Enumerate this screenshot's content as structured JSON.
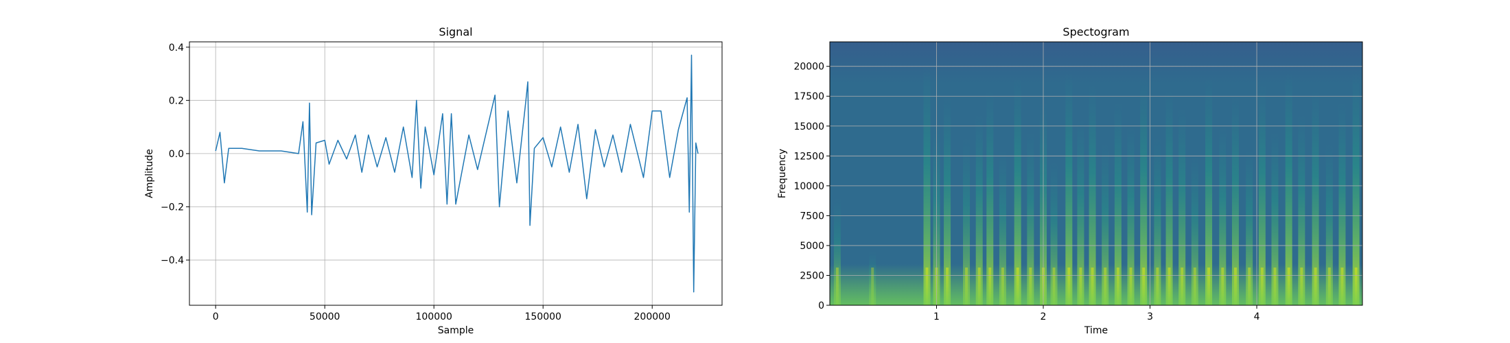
{
  "charts": [
    {
      "type": "line",
      "title": "Signal",
      "xlabel": "Sample",
      "ylabel": "Amplitude",
      "xlim": [
        -12000,
        232000
      ],
      "ylim": [
        -0.57,
        0.42
      ],
      "xticks": [
        0,
        50000,
        100000,
        150000,
        200000
      ],
      "xtick_labels": [
        "0",
        "50000",
        "100000",
        "150000",
        "200000"
      ],
      "yticks": [
        -0.4,
        -0.2,
        0.0,
        0.2,
        0.4
      ],
      "ytick_labels": [
        "−0.4",
        "−0.2",
        "0.0",
        "0.2",
        "0.4"
      ],
      "grid": true,
      "color": "#1f77b4",
      "series": [
        {
          "x": [
            0,
            2000,
            4000,
            6000,
            12000,
            20000,
            30000,
            38000,
            40000,
            42000,
            43000,
            44000,
            46000,
            50000,
            52000,
            56000,
            60000,
            64000,
            67000,
            70000,
            74000,
            78000,
            82000,
            86000,
            90000,
            92000,
            94000,
            96000,
            100000,
            104000,
            106000,
            108000,
            110000,
            116000,
            120000,
            124000,
            128000,
            130000,
            134000,
            138000,
            142000,
            143000,
            144000,
            146000,
            150000,
            154000,
            158000,
            162000,
            166000,
            170000,
            174000,
            178000,
            182000,
            186000,
            190000,
            196000,
            200000,
            204000,
            208000,
            212000,
            216000,
            217000,
            218000,
            219000,
            220000,
            221000
          ],
          "y": [
            0.01,
            0.08,
            -0.11,
            0.02,
            0.02,
            0.01,
            0.01,
            0.0,
            0.12,
            -0.22,
            0.19,
            -0.23,
            0.04,
            0.05,
            -0.04,
            0.05,
            -0.02,
            0.07,
            -0.07,
            0.07,
            -0.05,
            0.06,
            -0.07,
            0.1,
            -0.09,
            0.2,
            -0.13,
            0.1,
            -0.08,
            0.15,
            -0.19,
            0.15,
            -0.19,
            0.07,
            -0.06,
            0.08,
            0.22,
            -0.2,
            0.16,
            -0.11,
            0.19,
            0.27,
            -0.27,
            0.02,
            0.06,
            -0.05,
            0.1,
            -0.07,
            0.11,
            -0.17,
            0.09,
            -0.05,
            0.07,
            -0.07,
            0.11,
            -0.09,
            0.16,
            0.16,
            -0.09,
            0.09,
            0.21,
            -0.22,
            0.37,
            -0.52,
            0.04,
            0.0
          ]
        }
      ]
    },
    {
      "type": "heatmap",
      "title": "Spectogram",
      "xlabel": "Time",
      "ylabel": "Frequency",
      "xlim": [
        0.0,
        4.99
      ],
      "ylim": [
        0,
        22050
      ],
      "xticks": [
        1,
        2,
        3,
        4
      ],
      "xtick_labels": [
        "1",
        "2",
        "3",
        "4"
      ],
      "yticks": [
        0,
        2500,
        5000,
        7500,
        10000,
        12500,
        15000,
        17500,
        20000
      ],
      "ytick_labels": [
        "0",
        "2500",
        "5000",
        "7500",
        "10000",
        "12500",
        "15000",
        "17500",
        "20000"
      ],
      "grid": true,
      "colormap": "viridis",
      "background_color": "#2f6b8e",
      "low_band_color": "#6dcd59",
      "high_freq_color": "#3b528b",
      "bursts": [
        {
          "t": 0.07,
          "f_max": 9000,
          "intensity": 0.65
        },
        {
          "t": 0.4,
          "f_max": 4500,
          "intensity": 0.55
        },
        {
          "t": 0.91,
          "f_max": 20000,
          "intensity": 0.9
        },
        {
          "t": 1.0,
          "f_max": 15000,
          "intensity": 0.75
        },
        {
          "t": 1.1,
          "f_max": 17500,
          "intensity": 0.85
        },
        {
          "t": 1.28,
          "f_max": 14000,
          "intensity": 0.7
        },
        {
          "t": 1.4,
          "f_max": 16000,
          "intensity": 0.8
        },
        {
          "t": 1.5,
          "f_max": 18000,
          "intensity": 0.85
        },
        {
          "t": 1.62,
          "f_max": 13000,
          "intensity": 0.7
        },
        {
          "t": 1.76,
          "f_max": 19000,
          "intensity": 0.9
        },
        {
          "t": 1.88,
          "f_max": 14500,
          "intensity": 0.75
        },
        {
          "t": 2.0,
          "f_max": 17000,
          "intensity": 0.85
        },
        {
          "t": 2.1,
          "f_max": 12000,
          "intensity": 0.7
        },
        {
          "t": 2.24,
          "f_max": 19500,
          "intensity": 0.9
        },
        {
          "t": 2.35,
          "f_max": 15500,
          "intensity": 0.8
        },
        {
          "t": 2.46,
          "f_max": 18500,
          "intensity": 0.85
        },
        {
          "t": 2.58,
          "f_max": 13500,
          "intensity": 0.75
        },
        {
          "t": 2.7,
          "f_max": 17000,
          "intensity": 0.85
        },
        {
          "t": 2.82,
          "f_max": 15000,
          "intensity": 0.8
        },
        {
          "t": 2.94,
          "f_max": 19000,
          "intensity": 0.9
        },
        {
          "t": 3.07,
          "f_max": 14000,
          "intensity": 0.75
        },
        {
          "t": 3.18,
          "f_max": 18000,
          "intensity": 0.85
        },
        {
          "t": 3.3,
          "f_max": 16500,
          "intensity": 0.8
        },
        {
          "t": 3.42,
          "f_max": 12500,
          "intensity": 0.7
        },
        {
          "t": 3.55,
          "f_max": 19000,
          "intensity": 0.9
        },
        {
          "t": 3.68,
          "f_max": 15000,
          "intensity": 0.8
        },
        {
          "t": 3.8,
          "f_max": 17500,
          "intensity": 0.85
        },
        {
          "t": 3.93,
          "f_max": 13000,
          "intensity": 0.75
        },
        {
          "t": 4.05,
          "f_max": 18500,
          "intensity": 0.85
        },
        {
          "t": 4.17,
          "f_max": 14500,
          "intensity": 0.8
        },
        {
          "t": 4.3,
          "f_max": 19500,
          "intensity": 0.9
        },
        {
          "t": 4.42,
          "f_max": 16000,
          "intensity": 0.8
        },
        {
          "t": 4.55,
          "f_max": 18000,
          "intensity": 0.85
        },
        {
          "t": 4.68,
          "f_max": 13500,
          "intensity": 0.75
        },
        {
          "t": 4.8,
          "f_max": 17000,
          "intensity": 0.85
        },
        {
          "t": 4.93,
          "f_max": 19500,
          "intensity": 0.95
        }
      ]
    }
  ]
}
